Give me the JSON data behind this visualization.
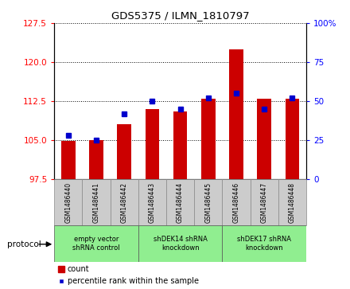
{
  "title": "GDS5375 / ILMN_1810797",
  "samples": [
    "GSM1486440",
    "GSM1486441",
    "GSM1486442",
    "GSM1486443",
    "GSM1486444",
    "GSM1486445",
    "GSM1486446",
    "GSM1486447",
    "GSM1486448"
  ],
  "counts": [
    104.9,
    105.0,
    108.0,
    111.0,
    110.5,
    113.0,
    122.5,
    113.0,
    113.0
  ],
  "percentiles": [
    28,
    25,
    42,
    50,
    45,
    52,
    55,
    45,
    52
  ],
  "ylim_left": [
    97.5,
    127.5
  ],
  "ylim_right": [
    0,
    100
  ],
  "yticks_left": [
    97.5,
    105.0,
    112.5,
    120.0,
    127.5
  ],
  "yticks_right": [
    0,
    25,
    50,
    75,
    100
  ],
  "bar_bottom": 97.5,
  "bar_color": "#cc0000",
  "percentile_color": "#0000cc",
  "bg_color": "#ffffff",
  "gray_box_color": "#cccccc",
  "green_color": "#90ee90",
  "protocol_groups": [
    {
      "label": "empty vector\nshRNA control",
      "start": 0,
      "end": 3
    },
    {
      "label": "shDEK14 shRNA\nknockdown",
      "start": 3,
      "end": 6
    },
    {
      "label": "shDEK17 shRNA\nknockdown",
      "start": 6,
      "end": 9
    }
  ],
  "legend_count_label": "count",
  "legend_percentile_label": "percentile rank within the sample",
  "protocol_label": "protocol"
}
